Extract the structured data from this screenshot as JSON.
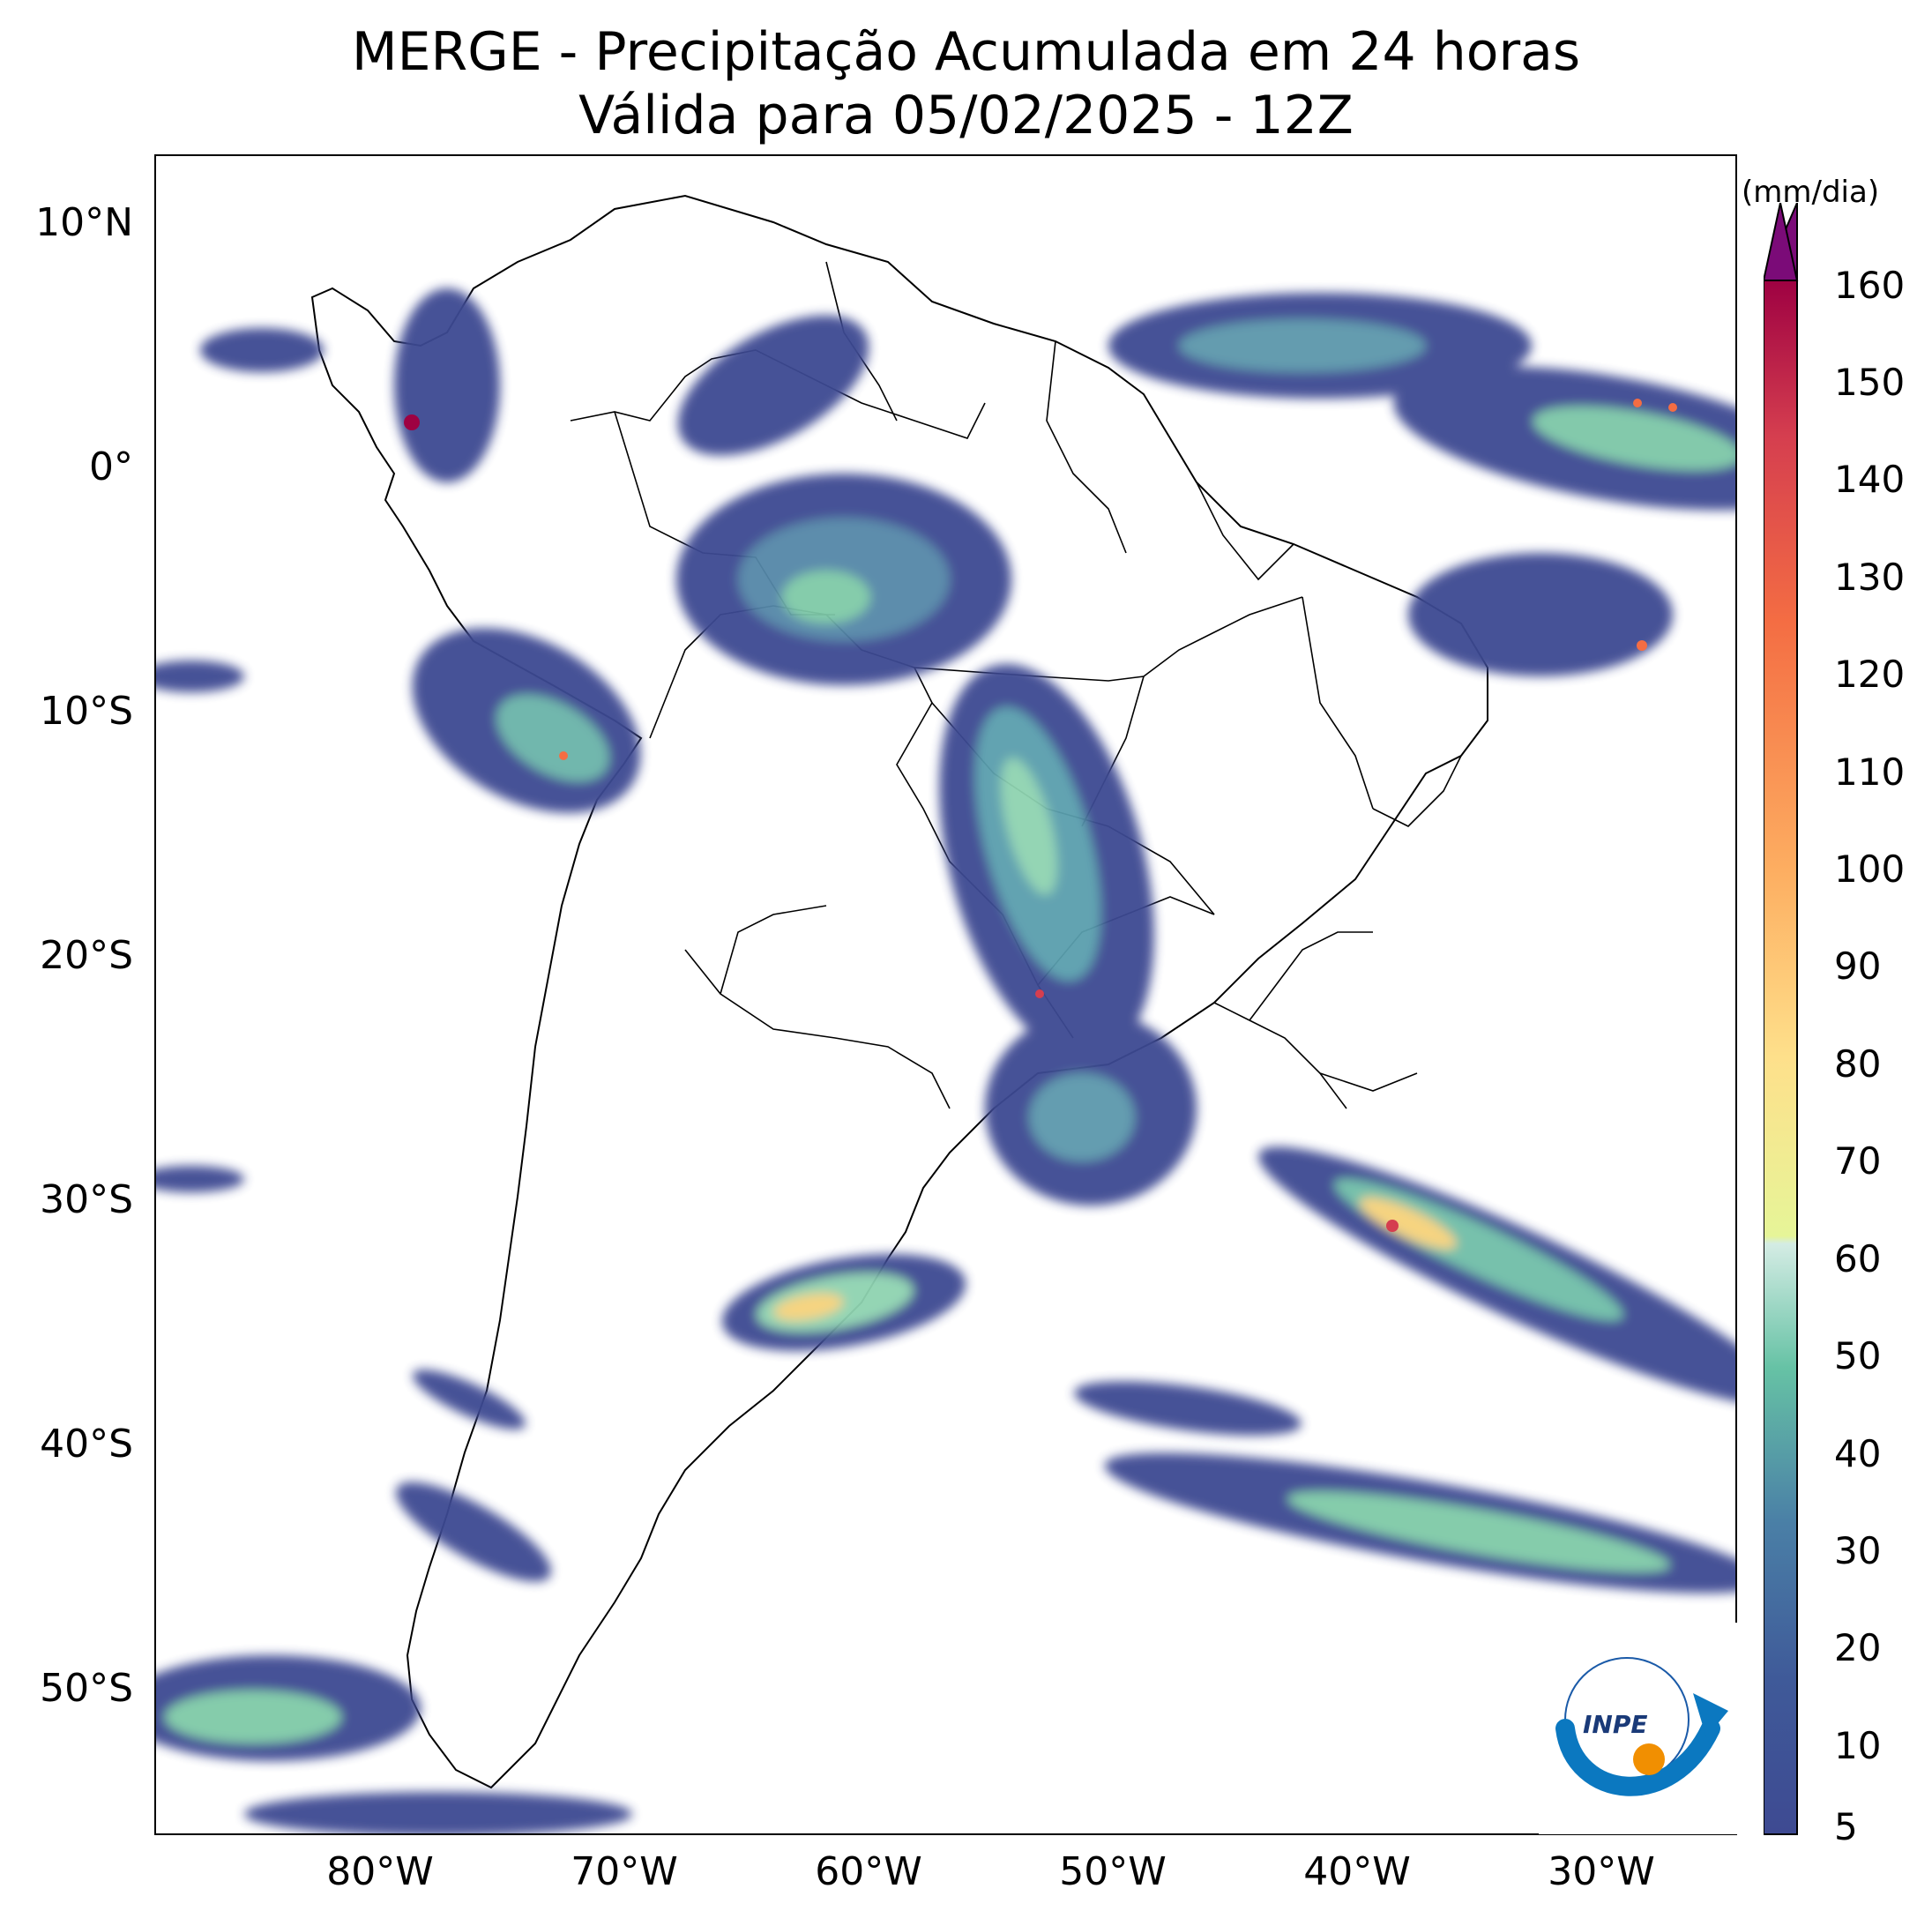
{
  "title": {
    "line1": "MERGE - Precipitação Acumulada em 24 horas",
    "line2": "Válida para 05/02/2025 - 12Z"
  },
  "axes": {
    "lat_labels": [
      "10°N",
      "0°",
      "10°S",
      "20°S",
      "30°S",
      "40°S",
      "50°S"
    ],
    "lon_labels": [
      "80°W",
      "70°W",
      "60°W",
      "50°W",
      "40°W",
      "30°W"
    ]
  },
  "colorbar": {
    "unit": "(mm/dia)",
    "tick_labels": [
      "160",
      "150",
      "140",
      "130",
      "120",
      "110",
      "100",
      "90",
      "80",
      "70",
      "60",
      "50",
      "40",
      "30",
      "20",
      "10",
      "5"
    ],
    "colors": {
      "low": "#3e4a92",
      "mid": "#66c2a5",
      "light": "#e6f598",
      "high": "#f46d43",
      "top": "#9e0142",
      "extend": "#7b0b78"
    }
  },
  "logo": {
    "text": "INPE"
  }
}
